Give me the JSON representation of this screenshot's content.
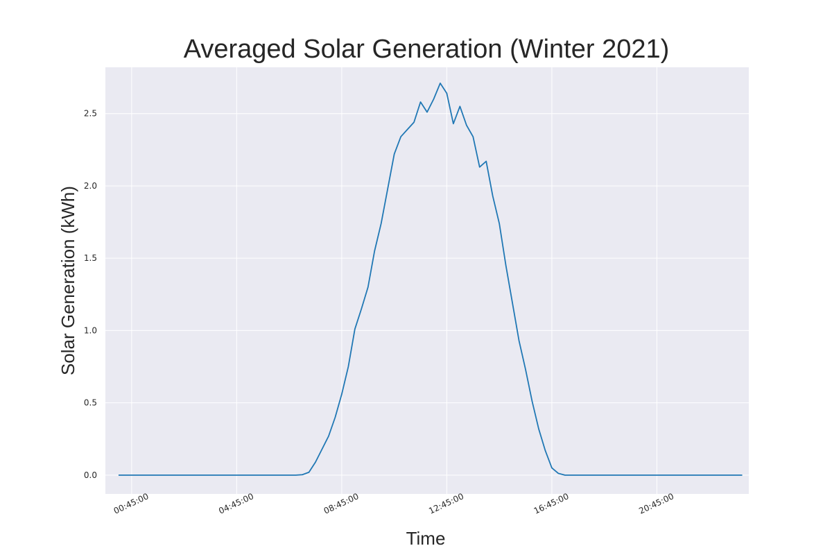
{
  "chart_data": {
    "type": "line",
    "title": "Averaged Solar Generation (Winter 2021)",
    "xlabel": "Time",
    "ylabel": "Solar Generation (kWh)",
    "xlim": [
      "23:45:00",
      "24:15:00"
    ],
    "ylim": [
      -0.13,
      2.82
    ],
    "x_ticks": [
      "00:45:00",
      "04:45:00",
      "08:45:00",
      "12:45:00",
      "16:45:00",
      "20:45:00"
    ],
    "y_ticks": [
      "0.0",
      "0.5",
      "1.0",
      "1.5",
      "2.0",
      "2.5"
    ],
    "grid": true,
    "background": "#eaeaf2",
    "grid_color": "#ffffff",
    "series": [
      {
        "color": "#1f77b4",
        "points": [
          [
            "00:15:00",
            0.0
          ],
          [
            "06:45:00",
            0.0
          ],
          [
            "07:00:00",
            0.0
          ],
          [
            "07:15:00",
            0.003
          ],
          [
            "07:30:00",
            0.02
          ],
          [
            "07:45:00",
            0.09
          ],
          [
            "08:00:00",
            0.18
          ],
          [
            "08:15:00",
            0.27
          ],
          [
            "08:30:00",
            0.4
          ],
          [
            "08:45:00",
            0.56
          ],
          [
            "09:00:00",
            0.75
          ],
          [
            "09:15:00",
            1.01
          ],
          [
            "09:30:00",
            1.15
          ],
          [
            "09:45:00",
            1.3
          ],
          [
            "10:00:00",
            1.55
          ],
          [
            "10:15:00",
            1.74
          ],
          [
            "10:30:00",
            1.98
          ],
          [
            "10:45:00",
            2.22
          ],
          [
            "11:00:00",
            2.34
          ],
          [
            "11:15:00",
            2.39
          ],
          [
            "11:30:00",
            2.44
          ],
          [
            "11:45:00",
            2.58
          ],
          [
            "12:00:00",
            2.51
          ],
          [
            "12:15:00",
            2.6
          ],
          [
            "12:30:00",
            2.71
          ],
          [
            "12:45:00",
            2.64
          ],
          [
            "13:00:00",
            2.43
          ],
          [
            "13:15:00",
            2.55
          ],
          [
            "13:30:00",
            2.42
          ],
          [
            "13:45:00",
            2.34
          ],
          [
            "14:00:00",
            2.13
          ],
          [
            "14:15:00",
            2.17
          ],
          [
            "14:30:00",
            1.93
          ],
          [
            "14:45:00",
            1.74
          ],
          [
            "15:00:00",
            1.45
          ],
          [
            "15:15:00",
            1.19
          ],
          [
            "15:30:00",
            0.93
          ],
          [
            "15:45:00",
            0.73
          ],
          [
            "16:00:00",
            0.51
          ],
          [
            "16:15:00",
            0.32
          ],
          [
            "16:30:00",
            0.17
          ],
          [
            "16:45:00",
            0.05
          ],
          [
            "17:00:00",
            0.012
          ],
          [
            "17:15:00",
            0.0
          ],
          [
            "17:30:00",
            0.0
          ],
          [
            "24:00:00",
            0.0
          ]
        ]
      }
    ]
  }
}
